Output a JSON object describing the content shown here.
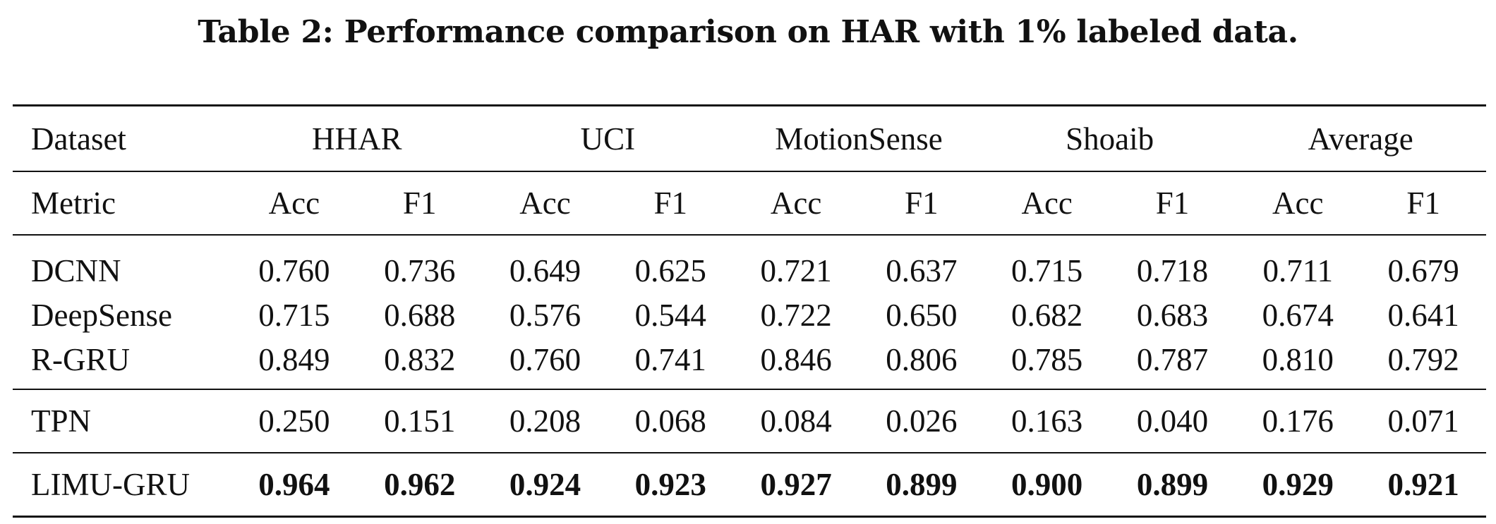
{
  "caption": "Table 2: Performance comparison on HAR with 1% labeled data.",
  "header": {
    "dataset_label": "Dataset",
    "datasets": [
      "HHAR",
      "UCI",
      "MotionSense",
      "Shoaib",
      "Average"
    ],
    "metric_label": "Metric",
    "metrics": [
      "Acc",
      "F1",
      "Acc",
      "F1",
      "Acc",
      "F1",
      "Acc",
      "F1",
      "Acc",
      "F1"
    ]
  },
  "rows": [
    {
      "method": "DCNN",
      "values": [
        "0.760",
        "0.736",
        "0.649",
        "0.625",
        "0.721",
        "0.637",
        "0.715",
        "0.718",
        "0.711",
        "0.679"
      ]
    },
    {
      "method": "DeepSense",
      "values": [
        "0.715",
        "0.688",
        "0.576",
        "0.544",
        "0.722",
        "0.650",
        "0.682",
        "0.683",
        "0.674",
        "0.641"
      ]
    },
    {
      "method": "R-GRU",
      "values": [
        "0.849",
        "0.832",
        "0.760",
        "0.741",
        "0.846",
        "0.806",
        "0.785",
        "0.787",
        "0.810",
        "0.792"
      ]
    },
    {
      "method": "TPN",
      "values": [
        "0.250",
        "0.151",
        "0.208",
        "0.068",
        "0.084",
        "0.026",
        "0.163",
        "0.040",
        "0.176",
        "0.071"
      ]
    },
    {
      "method": "LIMU-GRU",
      "bold": true,
      "values": [
        "0.964",
        "0.962",
        "0.924",
        "0.923",
        "0.927",
        "0.899",
        "0.900",
        "0.899",
        "0.929",
        "0.921"
      ]
    }
  ]
}
